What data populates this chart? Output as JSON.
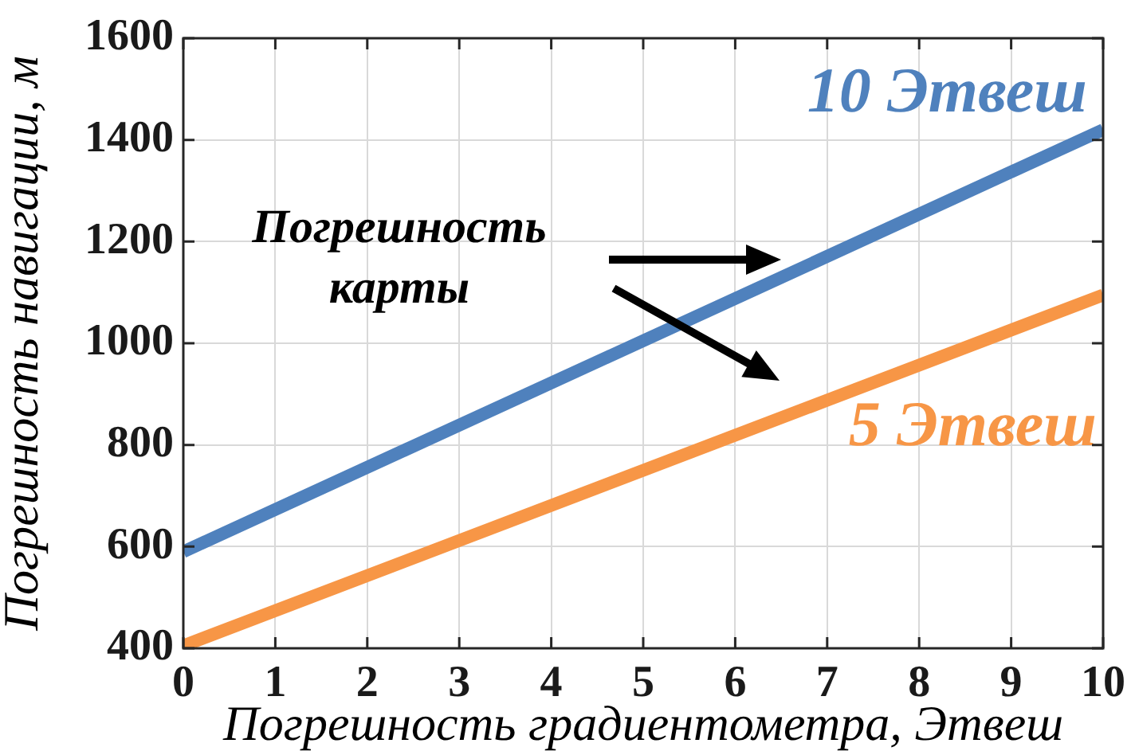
{
  "chart_data": {
    "type": "line",
    "xlabel": "Погрешность градиентометра, Этвеш",
    "ylabel": "Погрешность навигации, м",
    "x": [
      0,
      10
    ],
    "series": [
      {
        "name": "10 Этвеш",
        "color": "#4f81bd",
        "values": [
          590,
          1420
        ]
      },
      {
        "name": "5 Этвеш",
        "color": "#f79646",
        "values": [
          405,
          1095
        ]
      }
    ],
    "xlim": [
      0,
      10
    ],
    "xticks": [
      0,
      1,
      2,
      3,
      4,
      5,
      6,
      7,
      8,
      9,
      10
    ],
    "ylim": [
      400,
      1600
    ],
    "yticks": [
      400,
      600,
      800,
      1000,
      1200,
      1400,
      1600
    ],
    "grid": true,
    "annotations": [
      "Погрешность карты"
    ]
  }
}
